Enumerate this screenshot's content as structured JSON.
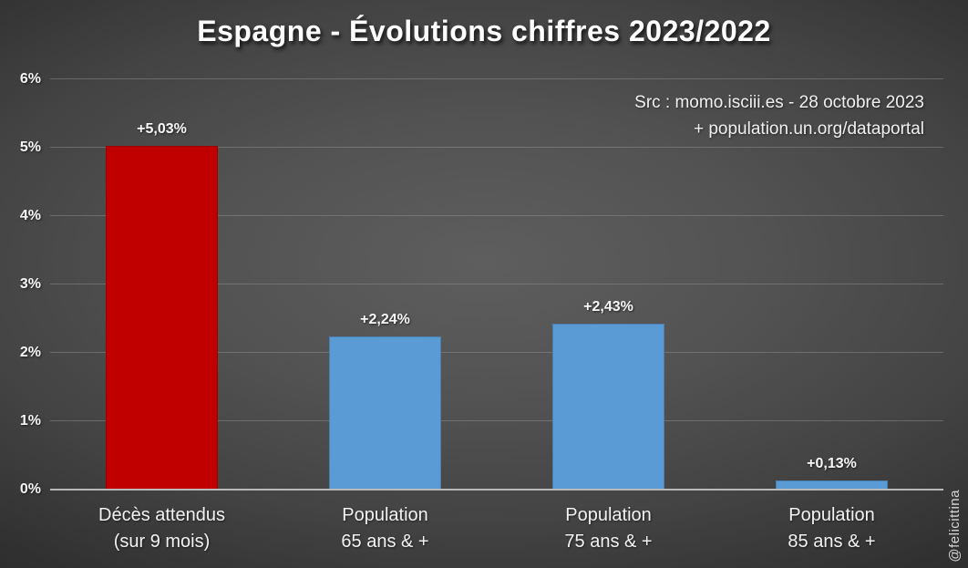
{
  "title": "Espagne - Évolutions chiffres 2023/2022",
  "source": {
    "line1": "Src : momo.isciii.es - 28 octobre 2023",
    "line2": "+ population.un.org/dataportal"
  },
  "watermark": "@felicittina",
  "colors": {
    "deaths_bar": "#c00000",
    "population_bar": "#5b9bd5",
    "axis_line": "#b8b8b8",
    "gridline": "#969696",
    "background_center": "#5e5e5e",
    "background_edge": "#242424",
    "text": "#f5f5f5"
  },
  "chart_data": {
    "type": "bar",
    "title": "Espagne - Évolutions chiffres 2023/2022",
    "categories": [
      "Décès attendus\n(sur 9 mois)",
      "Population\n65 ans & +",
      "Population\n75 ans & +",
      "Population\n85 ans & +"
    ],
    "values": [
      5.03,
      2.24,
      2.43,
      0.13
    ],
    "value_labels": [
      "+5,03%",
      "+2,24%",
      "+2,43%",
      "+0,13%"
    ],
    "bar_colors": [
      "#c00000",
      "#5b9bd5",
      "#5b9bd5",
      "#5b9bd5"
    ],
    "xlabel": "",
    "ylabel": "",
    "ylim": [
      0,
      6
    ],
    "yticks": [
      0,
      1,
      2,
      3,
      4,
      5,
      6
    ],
    "ytick_labels": [
      "0%",
      "1%",
      "2%",
      "3%",
      "4%",
      "5%",
      "6%"
    ],
    "grid": true,
    "legend": false,
    "unit": "%"
  }
}
